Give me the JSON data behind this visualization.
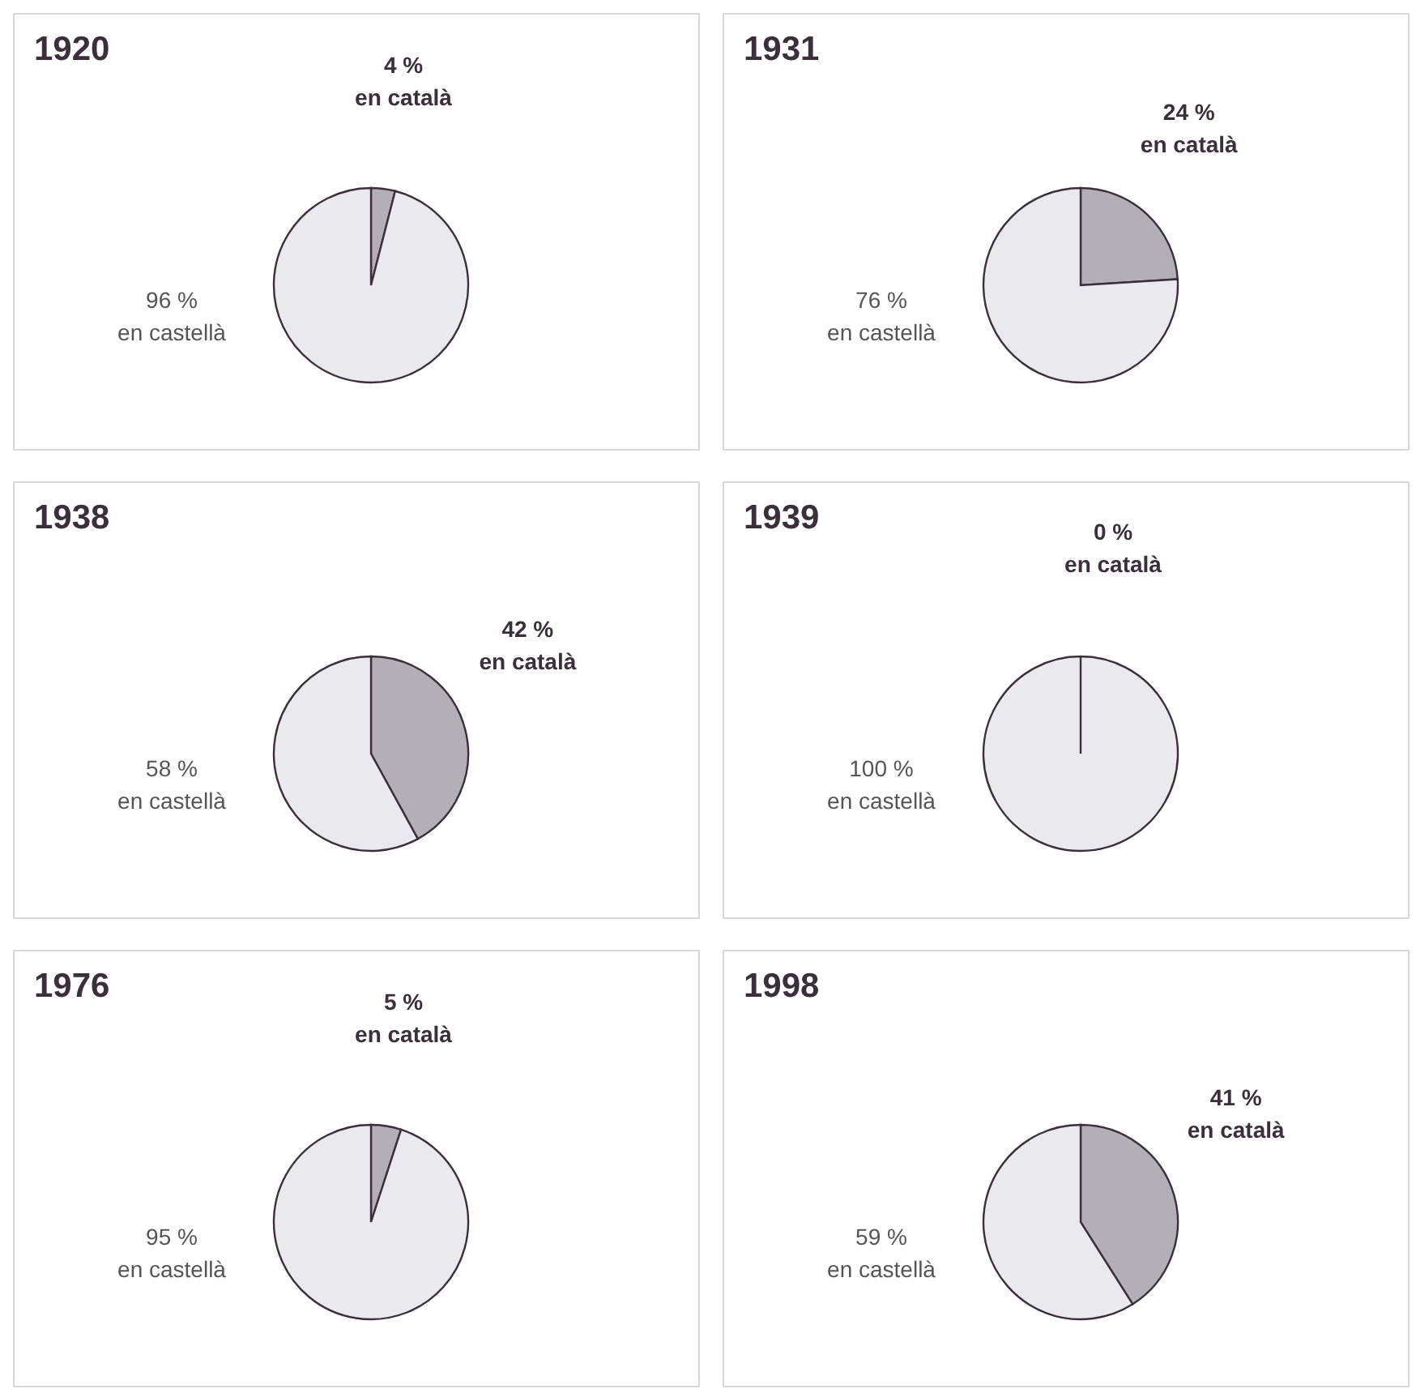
{
  "chart_data": [
    {
      "type": "pie",
      "title": "1920",
      "categories": [
        "en català",
        "en castellà"
      ],
      "values": [
        4,
        96
      ],
      "colors": [
        "#b3afb6",
        "#e9e9ee"
      ],
      "value_labels": [
        "4 %",
        "96 %"
      ]
    },
    {
      "type": "pie",
      "title": "1931",
      "categories": [
        "en català",
        "en castellà"
      ],
      "values": [
        24,
        76
      ],
      "colors": [
        "#b3afb6",
        "#e9e9ee"
      ],
      "value_labels": [
        "24 %",
        "76 %"
      ]
    },
    {
      "type": "pie",
      "title": "1938",
      "categories": [
        "en català",
        "en castellà"
      ],
      "values": [
        42,
        58
      ],
      "colors": [
        "#b3afb6",
        "#e9e9ee"
      ],
      "value_labels": [
        "42 %",
        "58 %"
      ]
    },
    {
      "type": "pie",
      "title": "1939",
      "categories": [
        "en català",
        "en castellà"
      ],
      "values": [
        0,
        100
      ],
      "colors": [
        "#b3afb6",
        "#e9e9ee"
      ],
      "value_labels": [
        "0 %",
        "100 %"
      ]
    },
    {
      "type": "pie",
      "title": "1976",
      "categories": [
        "en català",
        "en castellà"
      ],
      "values": [
        5,
        95
      ],
      "colors": [
        "#b3afb6",
        "#e9e9ee"
      ],
      "value_labels": [
        "5 %",
        "95 %"
      ]
    },
    {
      "type": "pie",
      "title": "1998",
      "categories": [
        "en català",
        "en castellà"
      ],
      "values": [
        41,
        59
      ],
      "colors": [
        "#b3afb6",
        "#e9e9ee"
      ],
      "value_labels": [
        "41 %",
        "59 %"
      ]
    }
  ]
}
